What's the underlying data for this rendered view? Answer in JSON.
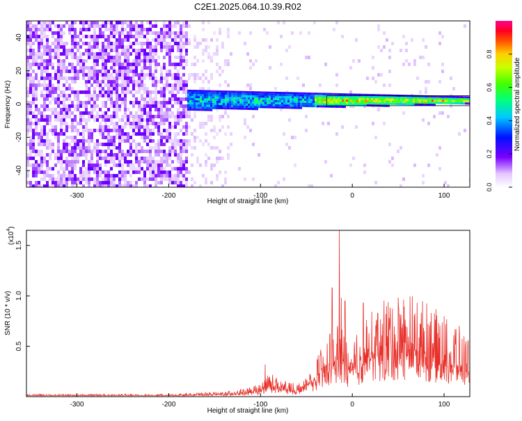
{
  "title": "C2E1.2025.064.10.39.R02",
  "chart_data": [
    {
      "type": "heatmap",
      "title": "C2E1.2025.064.10.39.R02",
      "xlabel": "Height of straight line (km)",
      "ylabel": "Frequency (Hz)",
      "xlim": [
        -355,
        128
      ],
      "ylim": [
        -50,
        50
      ],
      "xticks": [
        -300,
        -200,
        -100,
        0,
        100
      ],
      "yticks": [
        -40,
        -20,
        0,
        20,
        40
      ],
      "colorbar": {
        "label": "Normalized spectral amplitude",
        "range": [
          0,
          1
        ],
        "ticks": [
          "0.0",
          "0.2",
          "0.4",
          "0.6",
          "0.8"
        ],
        "colormap": "white-purple-blue-cyan-green-yellow-red-magenta"
      },
      "signal_band": {
        "noise_region_x": [
          -355,
          -180
        ],
        "band_start_x": -180,
        "band_center_hz": 2,
        "band_halfwidth_hz_near": 6,
        "band_halfwidth_hz_far": 2
      }
    },
    {
      "type": "line",
      "xlabel": "Height of straight line (km)",
      "ylabel": "SNR (10 * v/v)",
      "multiplier": "(x10",
      "multiplier_exp": "4",
      "xlim": [
        -355,
        128
      ],
      "ylim": [
        0,
        1.65
      ],
      "xticks": [
        -300,
        -200,
        -100,
        0,
        100
      ],
      "yticks": [
        0.5,
        1.0,
        1.5
      ],
      "ytick_labels": [
        "0.5",
        "1.0",
        "1.5"
      ],
      "series": [
        {
          "color": "#e8302a",
          "envelope_x": [
            -355,
            -250,
            -200,
            -170,
            -140,
            -120,
            -100,
            -90,
            -80,
            -70,
            -60,
            -50,
            -40,
            -30,
            -20,
            -15,
            -10,
            -5,
            0,
            10,
            20,
            30,
            40,
            50,
            60,
            70,
            80,
            90,
            100,
            110,
            128
          ],
          "envelope_y": [
            0.02,
            0.02,
            0.02,
            0.03,
            0.04,
            0.06,
            0.1,
            0.2,
            0.14,
            0.12,
            0.1,
            0.18,
            0.3,
            0.45,
            0.6,
            0.6,
            0.55,
            0.5,
            0.5,
            0.6,
            0.7,
            0.76,
            0.8,
            0.82,
            0.83,
            0.8,
            0.76,
            0.7,
            0.66,
            0.62,
            0.46
          ],
          "peaks": [
            {
              "x": -14,
              "y": 1.65
            },
            {
              "x": -22,
              "y": 1.08
            },
            {
              "x": -12,
              "y": 0.98
            },
            {
              "x": -8,
              "y": 0.95
            },
            {
              "x": 12,
              "y": 0.93
            },
            {
              "x": -95,
              "y": 0.32
            }
          ]
        }
      ]
    }
  ]
}
